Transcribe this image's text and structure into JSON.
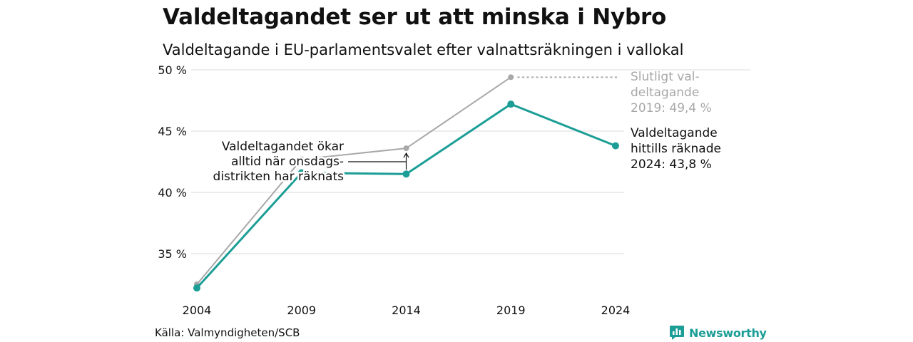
{
  "title": "Valdeltagandet ser ut att minska i Nybro",
  "subtitle": "Valdeltagande i EU-parlamentsvalet efter valnattsräkningen i vallokal",
  "source": "Källa: Valmyndigheten/SCB",
  "brand": "Newsworthy",
  "colors": {
    "final_series": "#a8a8a8",
    "preliminary_series": "#1c9e96",
    "grid": "#e2e2e2",
    "text": "#111111",
    "muted_text": "#a8a8a8"
  },
  "chart_data": {
    "type": "line",
    "x": [
      "2004",
      "2009",
      "2014",
      "2019",
      "2024"
    ],
    "ylim": [
      32,
      50.3
    ],
    "y_ticks": [
      35,
      40,
      45,
      50
    ],
    "y_tick_labels": [
      "35 %",
      "40 %",
      "45 %",
      "50 %"
    ],
    "grid": "horizontal",
    "series": [
      {
        "key": "final",
        "values": [
          32.5,
          42.7,
          43.6,
          49.4,
          null
        ]
      },
      {
        "key": "preliminary",
        "values": [
          32.2,
          41.6,
          41.5,
          47.2,
          43.8
        ]
      }
    ],
    "annotations": {
      "final_2019": [
        "Slutligt val-",
        "deltagande",
        "2019: 49,4 %"
      ],
      "preliminary_2024": [
        "Valdeltagande",
        "hittills räknade",
        "2024: 43,8 %"
      ],
      "onsdag": [
        "Valdeltagandet ökar",
        "alltid när onsdags-",
        "distrikten har räknats"
      ]
    }
  }
}
